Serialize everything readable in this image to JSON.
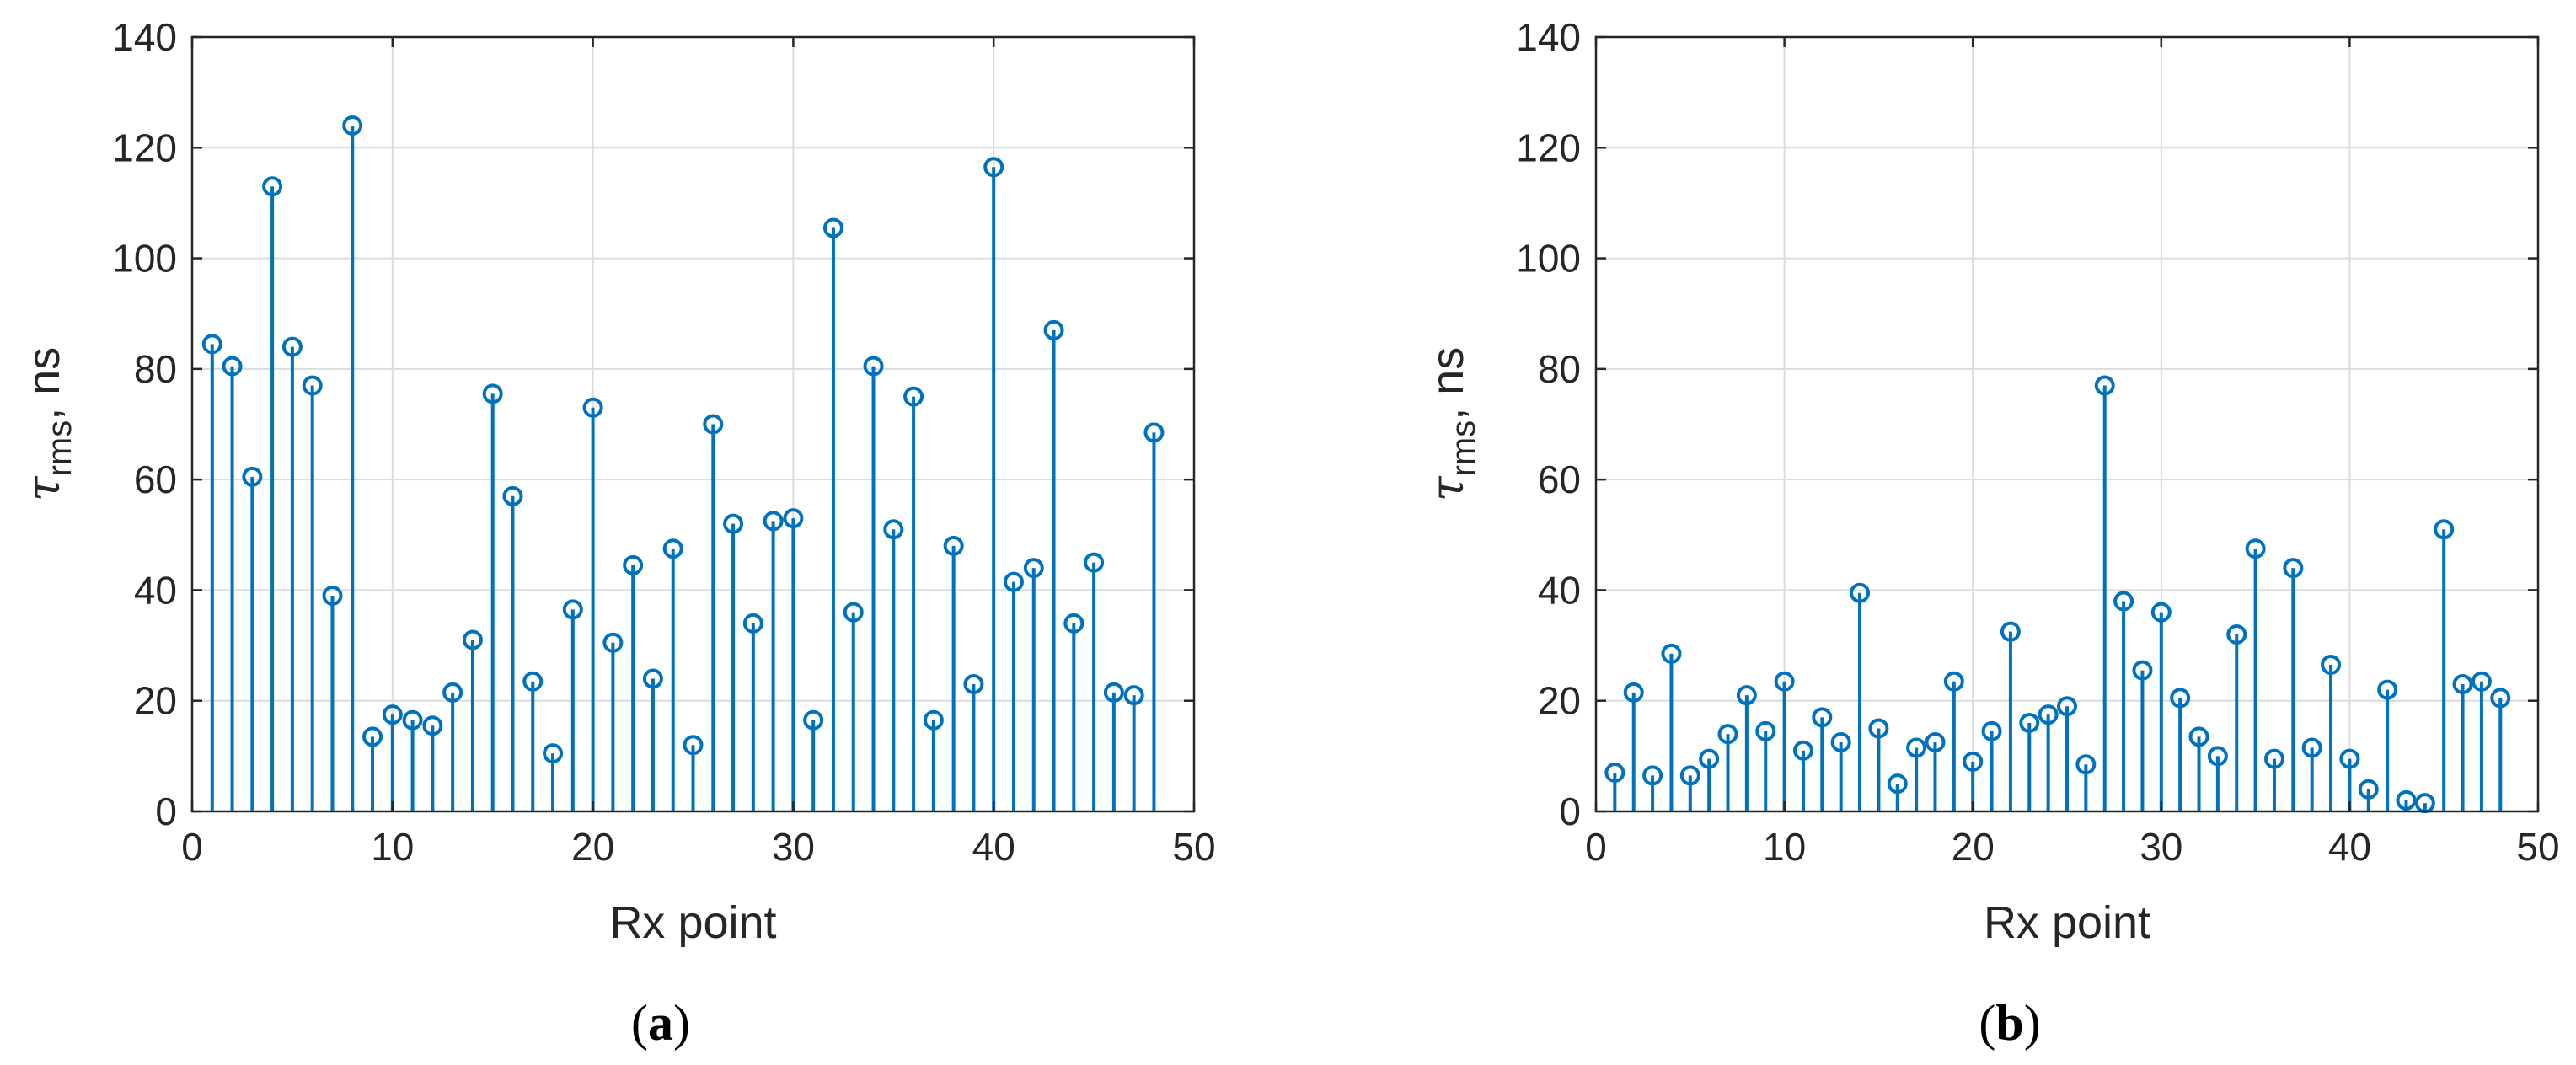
{
  "chart_data": [
    {
      "type": "stem",
      "panel_label": "a",
      "xlabel": "Rx point",
      "ylabel_symbol": "τ",
      "ylabel_subscript": "rms",
      "ylabel_unit": ", ns",
      "xlim": [
        0,
        50
      ],
      "ylim": [
        0,
        140
      ],
      "xticks": [
        0,
        10,
        20,
        30,
        40,
        50
      ],
      "yticks": [
        0,
        20,
        40,
        60,
        80,
        100,
        120,
        140
      ],
      "grid": true,
      "color": "#0072BD",
      "x": [
        1,
        2,
        3,
        4,
        5,
        6,
        7,
        8,
        9,
        10,
        11,
        12,
        13,
        14,
        15,
        16,
        17,
        18,
        19,
        20,
        21,
        22,
        23,
        24,
        25,
        26,
        27,
        28,
        29,
        30,
        31,
        32,
        33,
        34,
        35,
        36,
        37,
        38,
        39,
        40,
        41,
        42,
        43,
        44,
        45,
        46,
        47,
        48
      ],
      "values": [
        84.5,
        80.5,
        60.5,
        113,
        84,
        77,
        39,
        124,
        13.5,
        17.5,
        16.5,
        15.5,
        21.5,
        31,
        75.5,
        57,
        23.5,
        10.5,
        36.5,
        73,
        30.5,
        44.5,
        24,
        47.5,
        12,
        70,
        52,
        34,
        52.5,
        53,
        16.5,
        105.5,
        36,
        80.5,
        51,
        75,
        16.5,
        48,
        23,
        116.5,
        41.5,
        44,
        87,
        34,
        45,
        21.5,
        21,
        68.5
      ]
    },
    {
      "type": "stem",
      "panel_label": "b",
      "xlabel": "Rx point",
      "ylabel_symbol": "τ",
      "ylabel_subscript": "rms",
      "ylabel_unit": ", ns",
      "xlim": [
        0,
        50
      ],
      "ylim": [
        0,
        140
      ],
      "xticks": [
        0,
        10,
        20,
        30,
        40,
        50
      ],
      "yticks": [
        0,
        20,
        40,
        60,
        80,
        100,
        120,
        140
      ],
      "grid": true,
      "color": "#0072BD",
      "x": [
        1,
        2,
        3,
        4,
        5,
        6,
        7,
        8,
        9,
        10,
        11,
        12,
        13,
        14,
        15,
        16,
        17,
        18,
        19,
        20,
        21,
        22,
        23,
        24,
        25,
        26,
        27,
        28,
        29,
        30,
        31,
        32,
        33,
        34,
        35,
        36,
        37,
        38,
        39,
        40,
        41,
        42,
        43,
        44,
        45,
        46,
        47,
        48
      ],
      "values": [
        7,
        21.5,
        6.5,
        28.5,
        6.5,
        9.5,
        14,
        21,
        14.5,
        23.5,
        11,
        17,
        12.5,
        39.5,
        15,
        5,
        11.5,
        12.5,
        23.5,
        9,
        14.5,
        32.5,
        16,
        17.5,
        19,
        8.5,
        77,
        38,
        25.5,
        36,
        20.5,
        13.5,
        10,
        32,
        47.5,
        9.5,
        44,
        11.5,
        26.5,
        9.5,
        4,
        22,
        2,
        1.5,
        51,
        23,
        23.5,
        20.5
      ]
    }
  ]
}
